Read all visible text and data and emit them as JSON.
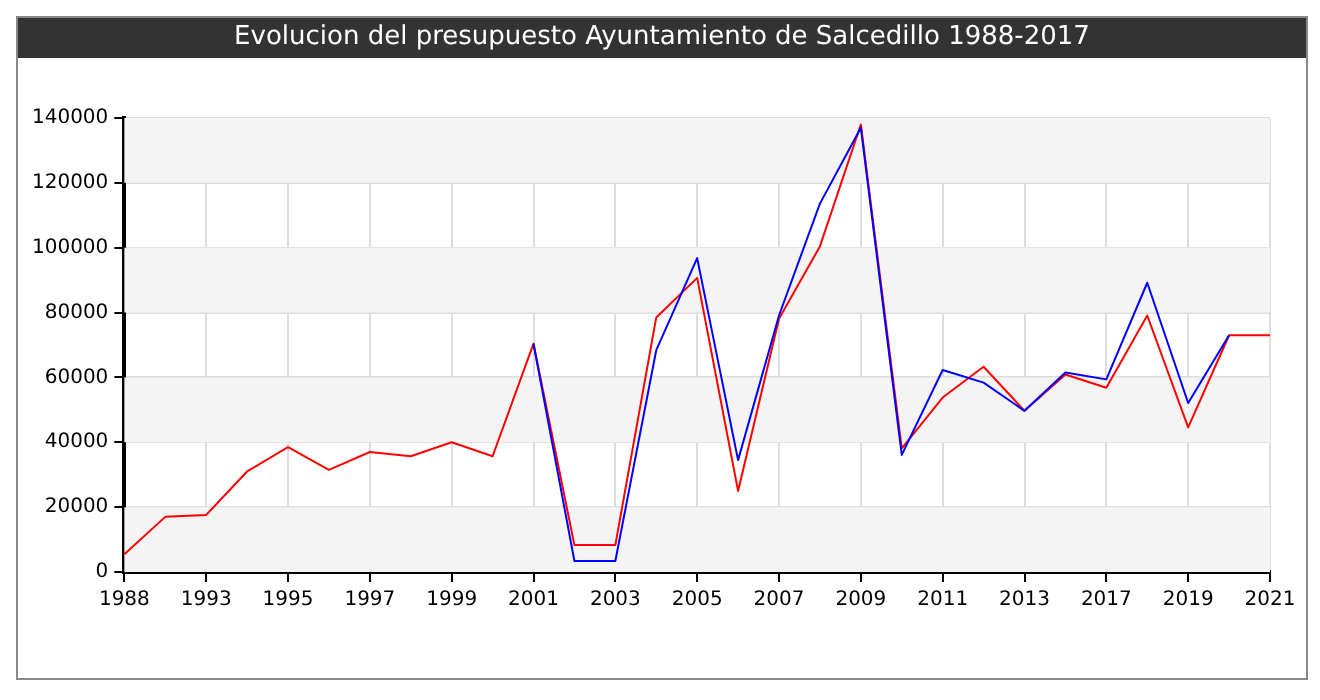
{
  "chart_data": {
    "type": "line",
    "title": "Evolucion del presupuesto Ayuntamiento de Salcedillo 1988-2017",
    "categories": [
      "1988",
      null,
      "1993",
      null,
      "1995",
      null,
      "1997",
      null,
      "1999",
      null,
      "2001",
      null,
      "2003",
      null,
      "2005",
      null,
      "2007",
      null,
      "2009",
      null,
      "2011",
      null,
      "2013",
      null,
      "2017",
      null,
      "2019",
      null,
      "2021"
    ],
    "series": [
      {
        "color": "#0000ff",
        "values": [
          null,
          null,
          null,
          null,
          null,
          null,
          null,
          null,
          null,
          null,
          70400,
          3400,
          3400,
          68400,
          96800,
          34500,
          79100,
          113600,
          137000,
          36100,
          62300,
          58400,
          49700,
          61500,
          59400,
          89200,
          52100,
          73000,
          null
        ]
      },
      {
        "color": "#ff0000",
        "values": [
          5500,
          17000,
          17600,
          31000,
          38500,
          31500,
          37000,
          35700,
          40000,
          35700,
          70400,
          8300,
          8300,
          78500,
          90700,
          25000,
          78100,
          100400,
          138000,
          38100,
          53800,
          63300,
          49700,
          60900,
          56800,
          79100,
          44600,
          73000,
          73000
        ]
      }
    ],
    "ylim": [
      0,
      140000
    ],
    "yticks": [
      0,
      20000,
      40000,
      60000,
      80000,
      100000,
      120000,
      140000
    ],
    "grid": true,
    "marker": "none",
    "line_style": "solid"
  }
}
